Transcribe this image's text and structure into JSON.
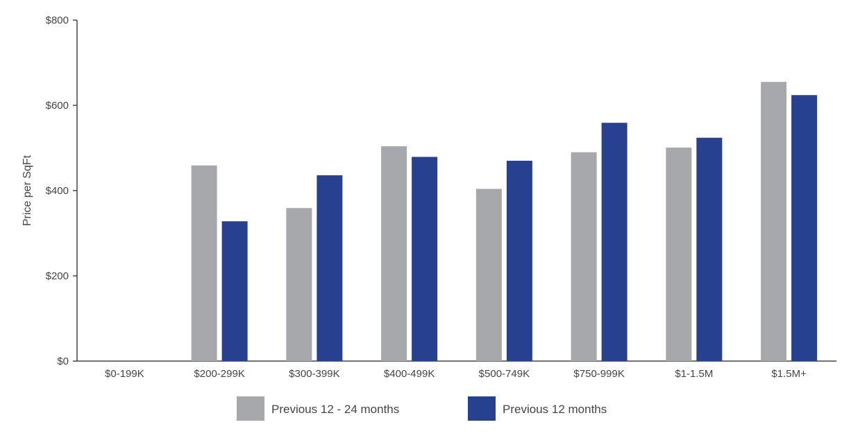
{
  "chart_data": {
    "type": "bar",
    "ylabel": "Price per SqFt",
    "ylim": [
      0,
      800
    ],
    "yticks": [
      0,
      200,
      400,
      600,
      800
    ],
    "ytick_labels": [
      "$0",
      "$200",
      "$400",
      "$600",
      "$800"
    ],
    "categories": [
      "$0-199K",
      "$200-299K",
      "$300-399K",
      "$400-499K",
      "$500-749K",
      "$750-999K",
      "$1-1.5M",
      "$1.5M+"
    ],
    "series": [
      {
        "name": "Previous 12 - 24 months",
        "color": "#a7a8ab",
        "values": [
          0,
          459,
          359,
          504,
          404,
          490,
          501,
          655
        ]
      },
      {
        "name": "Previous 12 months",
        "color": "#27408f",
        "values": [
          0,
          328,
          436,
          479,
          470,
          559,
          524,
          624
        ]
      }
    ],
    "grid": false,
    "legend_position": "bottom-center"
  }
}
